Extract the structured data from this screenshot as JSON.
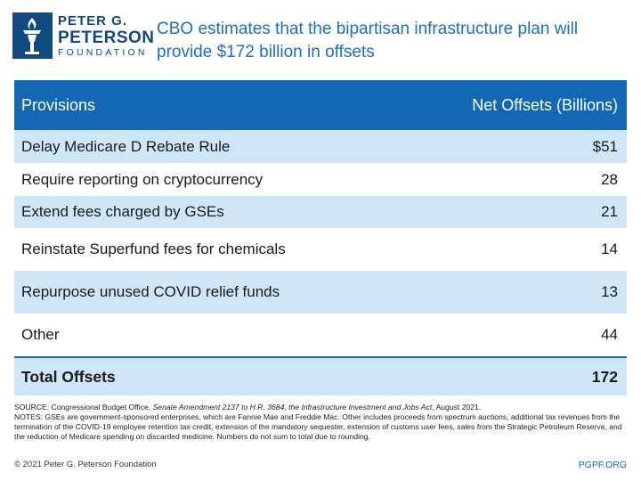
{
  "logo": {
    "line1": "PETER G.",
    "line2": "PETERSON",
    "line3": "FOUNDATION",
    "icon": "torch-icon",
    "color": "#12497f"
  },
  "title": "CBO estimates that the bipartisan infrastructure plan will provide $172 billion in offsets",
  "table": {
    "headers": [
      "Provisions",
      "Net Offsets (Billions)"
    ],
    "rows": [
      {
        "provision": "Delay Medicare D Rebate Rule",
        "value": "$51"
      },
      {
        "provision": "Require reporting on cryptocurrency",
        "value": "28"
      },
      {
        "provision": "Extend fees charged by GSEs",
        "value": "21"
      },
      {
        "provision": "Reinstate Superfund fees for chemicals",
        "value": "14"
      },
      {
        "provision": "Repurpose unused COVID relief funds",
        "value": "13"
      },
      {
        "provision": "Other",
        "value": "44"
      }
    ],
    "total": {
      "provision": "Total Offsets",
      "value": "172"
    },
    "header_color": "#1268b3",
    "shade_color": "#cfe6f8"
  },
  "source": {
    "prefix": "SOURCE: Congressional Budget Office, ",
    "title": "Senate Amendment 2137 to H.R. 3684, the Infrastructure Investment and Jobs Act",
    "suffix": ", August 2021."
  },
  "notes": "NOTES: GSEs are government-sponsored enterprises, which are Fannie Mae and Freddie Mac. Other includes proceeds from spectrum auctions, additional tax revenues from the termination of the COVID-19 employee retention tax credit, extension of the mandatory sequester, extension of customs user fees, sales from the Strategic Petroleum Reserve, and the reduction of Medicare spending on discarded medicine. Numbers do not sum to total due to rounding.",
  "footer": {
    "copyright": "© 2021 Peter G. Peterson Foundation",
    "site": "PGPF.ORG"
  }
}
